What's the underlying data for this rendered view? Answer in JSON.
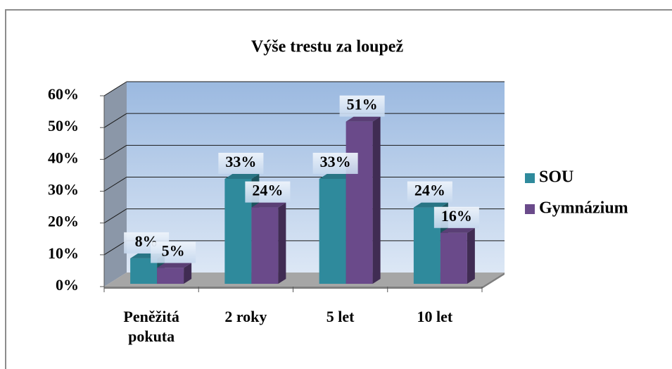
{
  "chart_data": {
    "type": "bar3d",
    "title": "Výše trestu za loupež",
    "categories": [
      "Peněžitá pokuta",
      "2 roky",
      "5 let",
      "10 let"
    ],
    "series": [
      {
        "name": "SOU",
        "color": "#2f8a9c",
        "values": [
          8,
          33,
          33,
          24
        ],
        "value_labels": [
          "8%",
          "33%",
          "33%",
          "24%"
        ]
      },
      {
        "name": "Gymnázium",
        "color": "#6a4a8a",
        "values": [
          5,
          24,
          51,
          16
        ],
        "value_labels": [
          "5%",
          "24%",
          "51%",
          "16%"
        ]
      }
    ],
    "ylim": [
      0,
      60
    ],
    "yticks": [
      {
        "value": 0,
        "label": "0%"
      },
      {
        "value": 10,
        "label": "10%"
      },
      {
        "value": 20,
        "label": "20%"
      },
      {
        "value": 30,
        "label": "30%"
      },
      {
        "value": 40,
        "label": "40%"
      },
      {
        "value": 50,
        "label": "50%"
      },
      {
        "value": 60,
        "label": "60%"
      }
    ],
    "grid": true,
    "legend": "right"
  }
}
